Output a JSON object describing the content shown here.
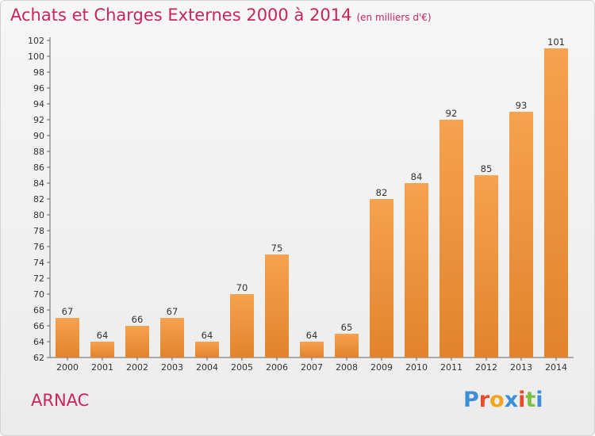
{
  "header": {
    "title": "Achats et Charges Externes 2000 à 2014",
    "unit": "(en milliers d'€)"
  },
  "footer": {
    "place": "ARNAC",
    "logo": {
      "letters": [
        "P",
        "r",
        "o",
        "x",
        "i",
        "t",
        "i"
      ],
      "colors": [
        "#3b8fd6",
        "#e94b2a",
        "#f2a51d",
        "#3b8fd6",
        "#e94b2a",
        "#7cc242",
        "#3b8fd6"
      ]
    }
  },
  "chart_data": {
    "type": "bar",
    "title": "Achats et Charges Externes 2000 à 2014",
    "subtitle": "(en milliers d'€)",
    "categories": [
      "2000",
      "2001",
      "2002",
      "2003",
      "2004",
      "2005",
      "2006",
      "2007",
      "2008",
      "2009",
      "2010",
      "2011",
      "2012",
      "2013",
      "2014"
    ],
    "values": [
      67,
      64,
      66,
      67,
      64,
      70,
      75,
      64,
      65,
      82,
      84,
      92,
      85,
      93,
      101
    ],
    "ylim": [
      62,
      102
    ],
    "ytick_step": 2,
    "grid": false,
    "bar_color_light": "#f6a24e",
    "bar_color_dark": "#e2832c"
  }
}
